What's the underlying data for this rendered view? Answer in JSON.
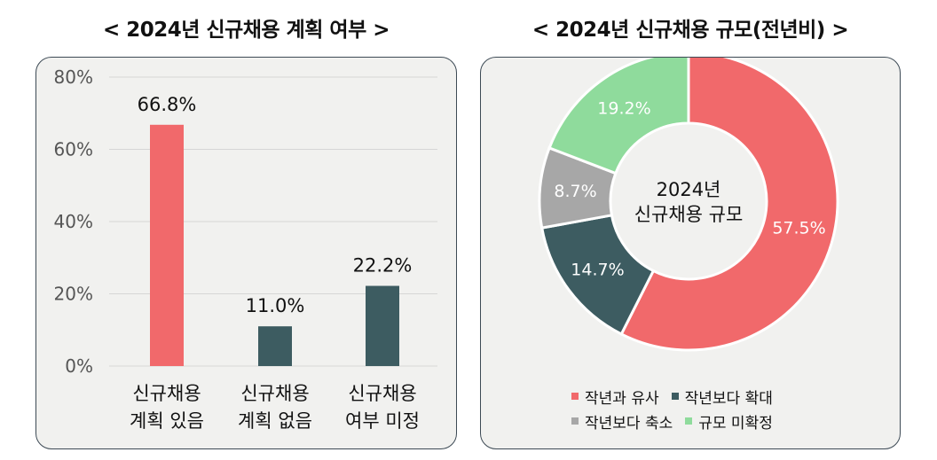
{
  "left_title": "< 2024년 신규채용 계획 여부 >",
  "right_title": "< 2024년 신규채용 규모(전년비) >",
  "chart_data": [
    {
      "type": "bar",
      "categories": [
        [
          "신규채용",
          "계획 있음"
        ],
        [
          "신규채용",
          "계획 없음"
        ],
        [
          "신규채용",
          "여부 미정"
        ]
      ],
      "values": [
        66.8,
        11.0,
        22.2
      ],
      "value_labels": [
        "66.8%",
        "11.0%",
        "22.2%"
      ],
      "colors": [
        "#f1696b",
        "#3d5c61",
        "#3d5c61"
      ],
      "ylim": [
        0,
        80
      ],
      "yticks": [
        "0%",
        "20%",
        "40%",
        "60%",
        "80%"
      ],
      "grid": true
    },
    {
      "type": "pie",
      "donut": true,
      "center_label": [
        "2024년",
        "신규채용 규모"
      ],
      "labels": [
        "작년과 유사",
        "작년보다 확대",
        "작년보다 축소",
        "규모 미확정"
      ],
      "values": [
        57.5,
        14.7,
        8.7,
        19.2
      ],
      "value_labels": [
        "57.5%",
        "14.7%",
        "8.7%",
        "19.2%"
      ],
      "colors": [
        "#f1696b",
        "#3d5c61",
        "#a7a7a7",
        "#8fdb9c"
      ],
      "legend_position": "bottom"
    }
  ]
}
